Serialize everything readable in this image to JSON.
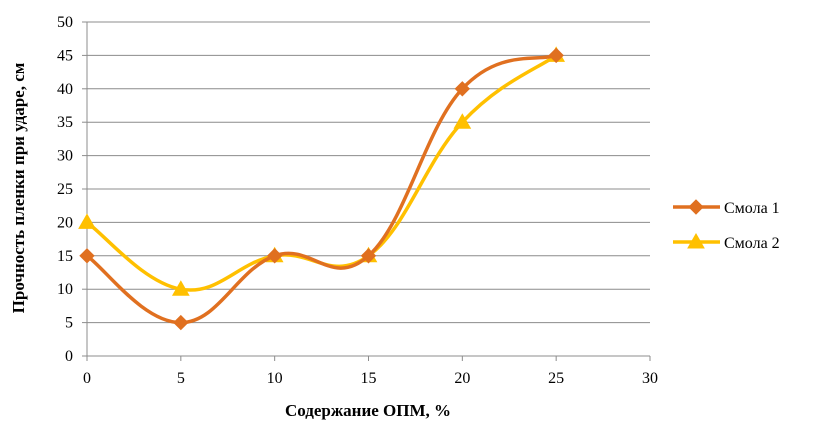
{
  "chart_data": {
    "type": "line",
    "title": "",
    "xlabel": "Содержание ОПМ, %",
    "ylabel": "Прочность пленки при ударе, см",
    "xlim": [
      0,
      30
    ],
    "ylim": [
      0,
      50
    ],
    "xticks": [
      "0",
      "5",
      "10",
      "15",
      "20",
      "25",
      "30"
    ],
    "yticks": [
      "0",
      "5",
      "10",
      "15",
      "20",
      "25",
      "30",
      "35",
      "40",
      "45",
      "50"
    ],
    "grid": "horizontal",
    "smooth": true,
    "legend_position": "right",
    "x": [
      0,
      5,
      10,
      15,
      20,
      25
    ],
    "series": [
      {
        "name": "Смола 1",
        "values": [
          15,
          5,
          15,
          15,
          40,
          45
        ],
        "color": "#E07020",
        "marker": "diamond"
      },
      {
        "name": "Смола 2",
        "values": [
          20,
          10,
          15,
          15,
          35,
          45
        ],
        "color": "#FFC000",
        "marker": "triangle"
      }
    ]
  }
}
